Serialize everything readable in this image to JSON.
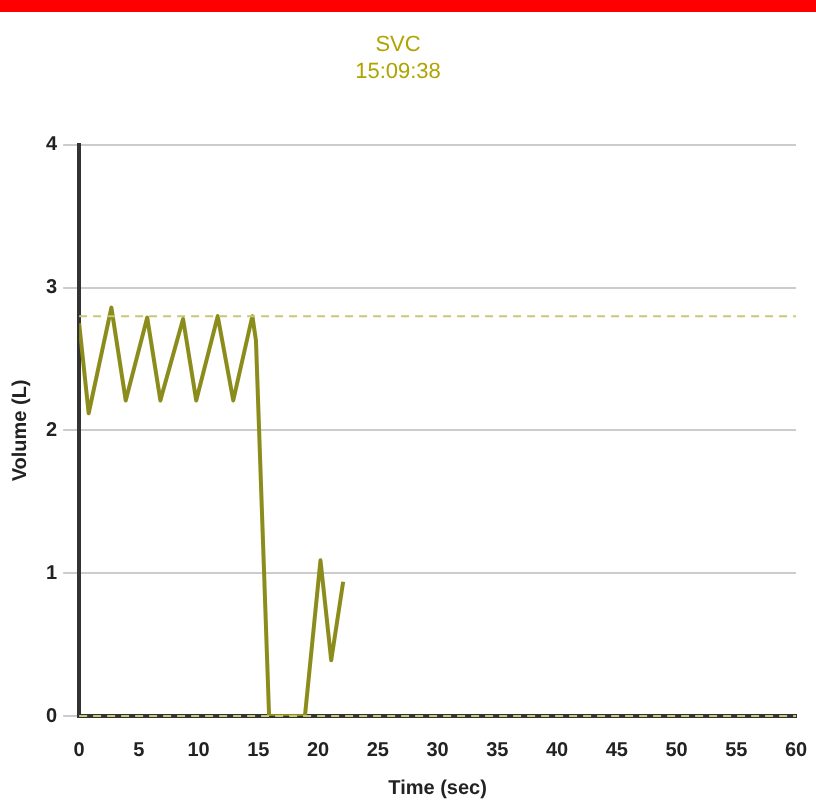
{
  "chart_data": {
    "type": "line",
    "title": "SVC",
    "subtitle": "15:09:38",
    "xlabel": "Time (sec)",
    "ylabel": "Volume (L)",
    "x": [
      0,
      0.8,
      2.7,
      3.9,
      5.7,
      6.8,
      8.7,
      9.8,
      11.6,
      12.9,
      14.5,
      14.8,
      15.9,
      18.9,
      20.2,
      21.1,
      22.1
    ],
    "series": [
      {
        "color": "#8c8c1c",
        "values": [
          2.75,
          2.12,
          2.86,
          2.21,
          2.79,
          2.21,
          2.78,
          2.21,
          2.8,
          2.21,
          2.8,
          2.63,
          0,
          0,
          1.09,
          0.39,
          0.94
        ]
      }
    ],
    "xlim": [
      0,
      60
    ],
    "xticks": [
      0,
      5,
      10,
      15,
      20,
      25,
      30,
      35,
      40,
      45,
      50,
      55,
      60
    ],
    "ylim": [
      0,
      4
    ],
    "yticks": [
      0,
      1,
      2,
      3,
      4
    ],
    "grid": "y",
    "marker": "none",
    "line_style": "solid",
    "legend": false,
    "ref_lines": [
      {
        "axis": "y",
        "value": 2.8,
        "color": "#c8c87a",
        "line_style": "dashed"
      },
      {
        "axis": "y",
        "value": 0,
        "color": "#c8c87a",
        "line_style": "dashed"
      }
    ]
  }
}
